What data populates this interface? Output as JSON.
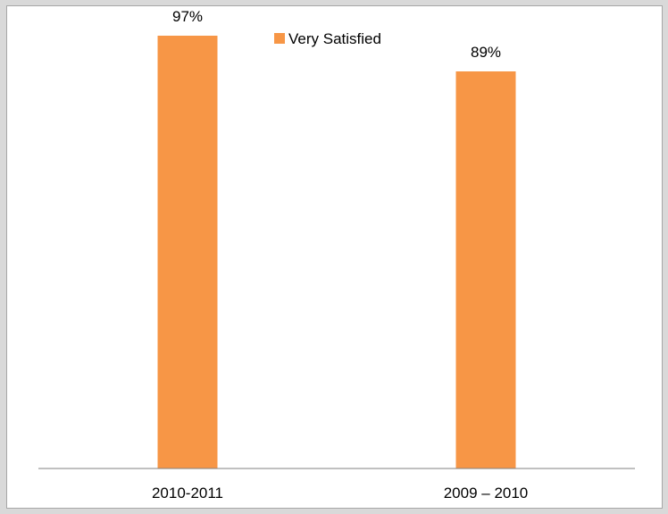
{
  "chart_data": {
    "type": "bar",
    "categories": [
      "2010-2011",
      "2009 – 2010"
    ],
    "series": [
      {
        "name": "Very Satisfied",
        "values": [
          97,
          89
        ],
        "color": "#f79646"
      }
    ],
    "data_labels": [
      "97%",
      "89%"
    ],
    "value_unit": "%",
    "ylim": [
      0,
      100
    ],
    "grid": false,
    "legend_position": "top",
    "axis_color": "#808080"
  }
}
